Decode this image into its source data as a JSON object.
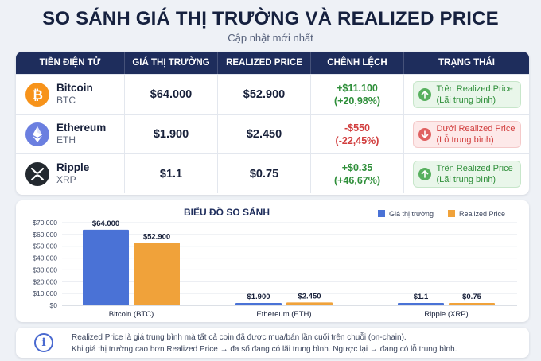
{
  "page": {
    "title": "SO SÁNH GIÁ THỊ TRƯỜNG VÀ REALIZED PRICE",
    "subtitle": "Cập nhật mới nhất"
  },
  "table": {
    "headers": [
      "TIỀN ĐIỆN TỬ",
      "GIÁ THỊ TRƯỜNG",
      "REALIZED PRICE",
      "CHÊNH LỆCH",
      "TRẠNG THÁI"
    ],
    "rows": [
      {
        "name": "Bitcoin",
        "symbol": "BTC",
        "icon": "bitcoin-icon",
        "icon_color": "#f7931a",
        "market_price": "$64.000",
        "realized_price": "$52.900",
        "diff_abs": "+$11.100",
        "diff_pct": "(+20,98%)",
        "trend": "up",
        "status_line1": "Trên Realized Price",
        "status_line2": "(Lãi trung bình)"
      },
      {
        "name": "Ethereum",
        "symbol": "ETH",
        "icon": "ethereum-icon",
        "icon_color": "#6b7fe0",
        "market_price": "$1.900",
        "realized_price": "$2.450",
        "diff_abs": "-$550",
        "diff_pct": "(-22,45%)",
        "trend": "down",
        "status_line1": "Dưới Realized Price",
        "status_line2": "(Lỗ trung bình)"
      },
      {
        "name": "Ripple",
        "symbol": "XRP",
        "icon": "ripple-icon",
        "icon_color": "#23292f",
        "market_price": "$1.1",
        "realized_price": "$0.75",
        "diff_abs": "+$0.35",
        "diff_pct": "(+46,67%)",
        "trend": "up",
        "status_line1": "Trên Realized Price",
        "status_line2": "(Lãi trung bình)"
      }
    ]
  },
  "info": {
    "icon": "info-icon",
    "line1": "Realized Price là giá trung bình mà tất cả coin đã được mua/bán lần cuối trên chuỗi (on-chain).",
    "line2": "Khi giá thị trường cao hơn Realized Price → đa số đang có lãi trung bình. Ngược lại → đang có lỗ trung bình."
  },
  "colors": {
    "header_bg": "#1e2d5c",
    "market_bar": "#4a72d6",
    "realized_bar": "#f0a23a",
    "positive": "#2f8f3a",
    "negative": "#d13d3d"
  },
  "chart_data": {
    "type": "bar",
    "title": "BIỂU ĐỒ SO SÁNH",
    "categories": [
      "Bitcoin (BTC)",
      "Ethereum (ETH)",
      "Ripple (XRP)"
    ],
    "series": [
      {
        "name": "Giá thị trường",
        "values": [
          64000,
          1900,
          1.1
        ],
        "labels": [
          "$64.000",
          "$1.900",
          "$1.1"
        ],
        "color": "#4a72d6"
      },
      {
        "name": "Realized Price",
        "values": [
          52900,
          2450,
          0.75
        ],
        "labels": [
          "$52.900",
          "$2.450",
          "$0.75"
        ],
        "color": "#f0a23a"
      }
    ],
    "ylim": [
      0,
      70000
    ],
    "yticks": [
      0,
      10000,
      20000,
      30000,
      40000,
      50000,
      60000,
      70000
    ],
    "ytick_labels": [
      "$0",
      "$10.000",
      "$20.000",
      "$30.000",
      "$40.000",
      "$50.000",
      "$60.000",
      "$70.000"
    ],
    "xlabel": "",
    "ylabel": "",
    "grid": true,
    "legend": "top-right"
  }
}
